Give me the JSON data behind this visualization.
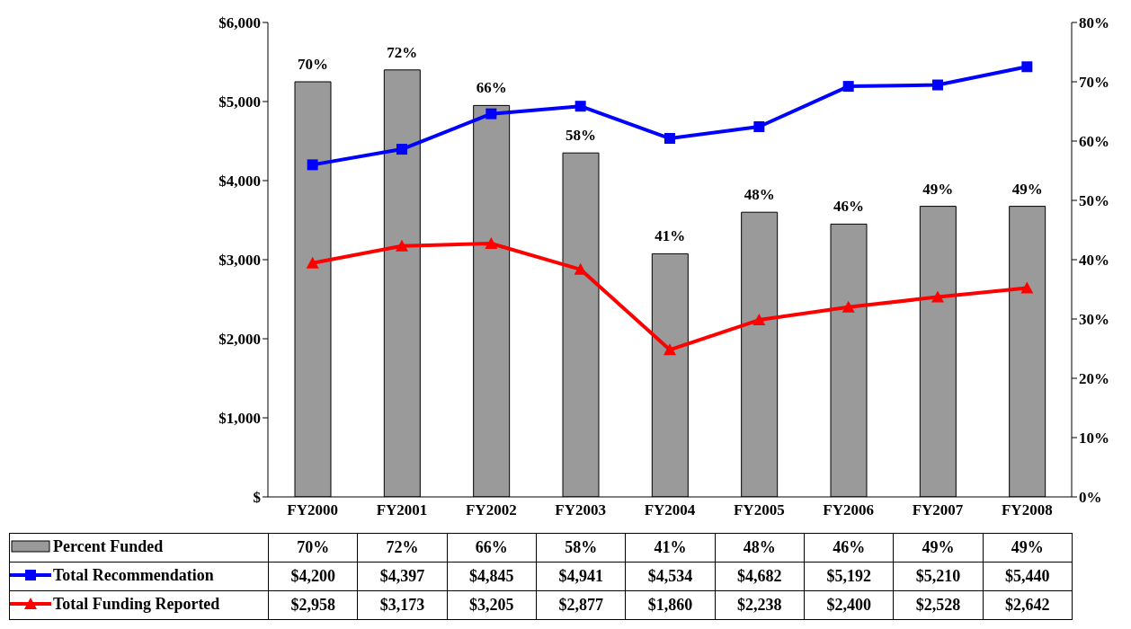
{
  "chart_data": {
    "type": "bar",
    "categories": [
      "FY2000",
      "FY2001",
      "FY2002",
      "FY2003",
      "FY2004",
      "FY2005",
      "FY2006",
      "FY2007",
      "FY2008"
    ],
    "series": [
      {
        "name": "Percent Funded",
        "axis": "y2",
        "color": "#9a9a9a",
        "values": [
          70,
          72,
          66,
          58,
          41,
          48,
          46,
          49,
          49
        ],
        "value_labels": [
          "70%",
          "72%",
          "66%",
          "58%",
          "41%",
          "48%",
          "46%",
          "49%",
          "49%"
        ]
      },
      {
        "name": "Total Recommendation",
        "type": "line",
        "color": "#0000ff",
        "marker": "square",
        "values": [
          4200,
          4397,
          4845,
          4941,
          4534,
          4682,
          5192,
          5210,
          5440
        ],
        "value_labels": [
          "$4,200",
          "$4,397",
          "$4,845",
          "$4,941",
          "$4,534",
          "$4,682",
          "$5,192",
          "$5,210",
          "$5,440"
        ]
      },
      {
        "name": "Total Funding Reported",
        "type": "line",
        "color": "#ff0000",
        "marker": "triangle",
        "values": [
          2958,
          3173,
          3205,
          2877,
          1860,
          2238,
          2400,
          2528,
          2642
        ],
        "value_labels": [
          "$2,958",
          "$3,173",
          "$3,205",
          "$2,877",
          "$1,860",
          "$2,238",
          "$2,400",
          "$2,528",
          "$2,642"
        ]
      }
    ],
    "ylim": [
      0,
      6000
    ],
    "yticks": [
      {
        "value": 0,
        "label": "$"
      },
      {
        "value": 1000,
        "label": "$1,000"
      },
      {
        "value": 2000,
        "label": "$2,000"
      },
      {
        "value": 3000,
        "label": "$3,000"
      },
      {
        "value": 4000,
        "label": "$4,000"
      },
      {
        "value": 5000,
        "label": "$5,000"
      },
      {
        "value": 6000,
        "label": "$6,000"
      }
    ],
    "y2lim": [
      0,
      80
    ],
    "y2ticks": [
      {
        "value": 0,
        "label": "0%"
      },
      {
        "value": 10,
        "label": "10%"
      },
      {
        "value": 20,
        "label": "20%"
      },
      {
        "value": 30,
        "label": "30%"
      },
      {
        "value": 40,
        "label": "40%"
      },
      {
        "value": 50,
        "label": "50%"
      },
      {
        "value": 60,
        "label": "60%"
      },
      {
        "value": 70,
        "label": "70%"
      },
      {
        "value": 80,
        "label": "80%"
      }
    ],
    "legend": "bottom"
  }
}
